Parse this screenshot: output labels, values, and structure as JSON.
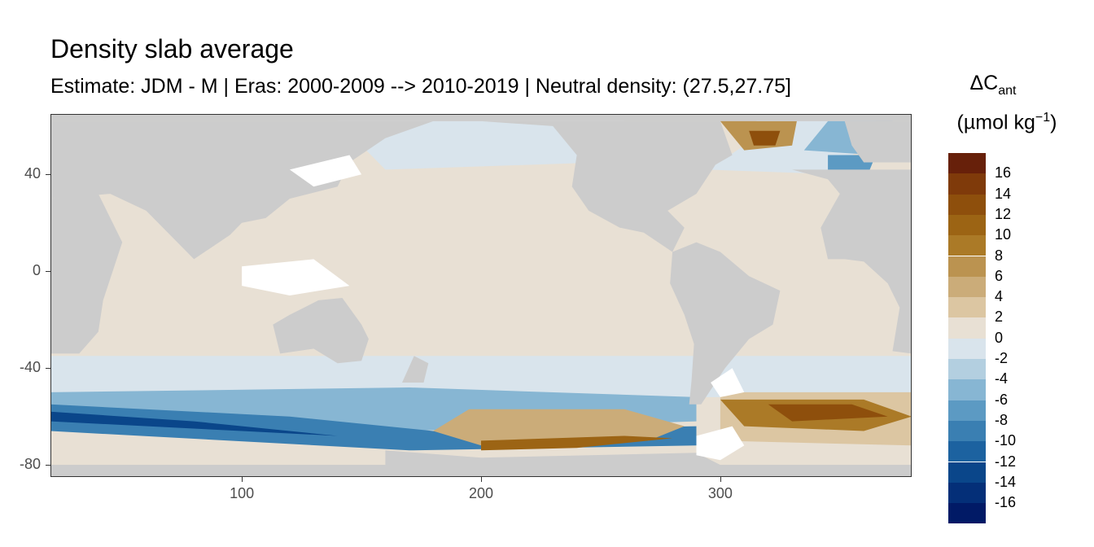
{
  "title": "Density slab average",
  "subtitle": "Estimate: JDM - M | Eras: 2000-2009 --> 2010-2019 | Neutral density: (27.5,27.75]",
  "legend": {
    "title_main": "ΔC",
    "title_sub": "ant",
    "unit_prefix": "(µmol kg",
    "unit_exp": "−1",
    "unit_suffix": ")",
    "labels": [
      "16",
      "14",
      "12",
      "10",
      "8",
      "6",
      "4",
      "2",
      "0",
      "-2",
      "-4",
      "-6",
      "-8",
      "-10",
      "-12",
      "-14",
      "-16"
    ],
    "colors": [
      "#67200a",
      "#7f3a0a",
      "#8e4f0c",
      "#9c6414",
      "#ab7a27",
      "#bb9350",
      "#cbac79",
      "#dcc6a2",
      "#e8e0d4",
      "#d9e4ec",
      "#b3cfe0",
      "#87b6d3",
      "#5c9ac3",
      "#3a7fb2",
      "#1c62a0",
      "#0a468a",
      "#042f78",
      "#011a66"
    ]
  },
  "axes": {
    "x_ticks": [
      "100",
      "200",
      "300"
    ],
    "y_ticks": [
      "40",
      "0",
      "-40",
      "-80"
    ]
  },
  "map_colors": {
    "land": "#cccccc",
    "missing": "#ffffff",
    "neutral_ocean": "#e8e0d4",
    "light_blue": "#d9e4ec"
  },
  "chart_data": {
    "type": "heatmap",
    "title": "Density slab average",
    "subtitle": "Estimate: JDM - M | Eras: 2000-2009 --> 2010-2019 | Neutral density: (27.5,27.75]",
    "xlabel": "",
    "ylabel": "",
    "xlim": [
      20,
      380
    ],
    "ylim": [
      -85,
      65
    ],
    "x_ticks": [
      100,
      200,
      300
    ],
    "y_ticks": [
      40,
      0,
      -40,
      -80
    ],
    "colorbar": {
      "breaks": [
        16,
        14,
        12,
        10,
        8,
        6,
        4,
        2,
        0,
        -2,
        -4,
        -6,
        -8,
        -10,
        -12,
        -14,
        -16
      ],
      "range": [
        -18,
        18
      ]
    },
    "regions": [
      {
        "area": "Pacific / Indian Ocean interior",
        "value": 0
      },
      {
        "area": "Southern Ocean band 45-55S",
        "value": -2
      },
      {
        "area": "Southern Ocean 55-70S (Pacific/Indian)",
        "value": -8
      },
      {
        "area": "Pacific sector near Antarctica 60-75S",
        "value": 6
      },
      {
        "area": "South Atlantic 50-65S",
        "value": 10
      },
      {
        "area": "North Atlantic subpolar",
        "value": -6
      },
      {
        "area": "Labrador / Irminger Sea",
        "value": 12
      }
    ]
  }
}
